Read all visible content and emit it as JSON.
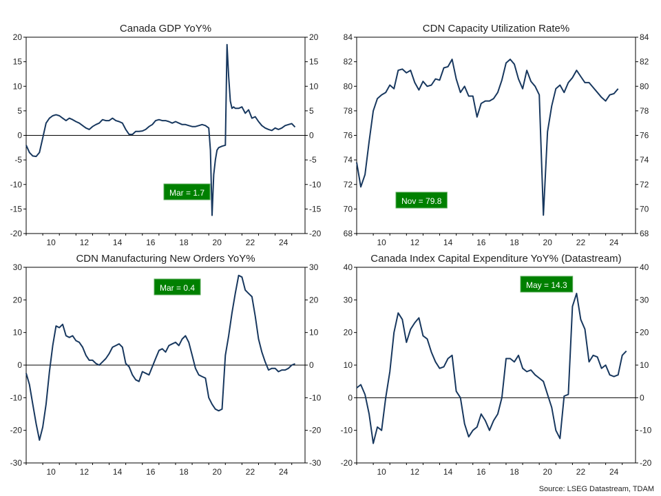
{
  "source": "Source: LSEG Datastream, TDAM",
  "colors": {
    "line": "#17375e",
    "label_bg": "#008000",
    "label_border": "#5fae5f",
    "label_text": "#ffffff"
  },
  "chart_data": [
    {
      "type": "line",
      "title": "Canada GDP YoY%",
      "xlim": [
        2009,
        2025.8
      ],
      "ylim": [
        -20,
        20
      ],
      "x_ticks": [
        10,
        12,
        14,
        16,
        18,
        20,
        22,
        24
      ],
      "y_ticks": [
        -20,
        -15,
        -10,
        -5,
        0,
        5,
        10,
        15,
        20
      ],
      "zero_line": true,
      "annotation": "Mar  = 1.7",
      "x": [
        2009.0,
        2009.2,
        2009.4,
        2009.6,
        2009.8,
        2010.0,
        2010.2,
        2010.4,
        2010.6,
        2010.8,
        2011.0,
        2011.2,
        2011.4,
        2011.6,
        2011.8,
        2012.0,
        2012.2,
        2012.4,
        2012.6,
        2012.8,
        2013.0,
        2013.2,
        2013.4,
        2013.6,
        2013.8,
        2014.0,
        2014.2,
        2014.4,
        2014.6,
        2014.8,
        2015.0,
        2015.2,
        2015.4,
        2015.6,
        2015.8,
        2016.0,
        2016.2,
        2016.4,
        2016.6,
        2016.8,
        2017.0,
        2017.2,
        2017.4,
        2017.6,
        2017.8,
        2018.0,
        2018.2,
        2018.4,
        2018.6,
        2018.8,
        2019.0,
        2019.2,
        2019.4,
        2019.6,
        2019.8,
        2020.0,
        2020.1,
        2020.2,
        2020.3,
        2020.4,
        2020.5,
        2020.6,
        2020.8,
        2021.0,
        2021.1,
        2021.2,
        2021.3,
        2021.4,
        2021.5,
        2021.6,
        2021.8,
        2022.0,
        2022.2,
        2022.4,
        2022.6,
        2022.8,
        2023.0,
        2023.2,
        2023.4,
        2023.6,
        2023.8,
        2024.0,
        2024.2,
        2024.4,
        2024.6,
        2024.8,
        2025.0,
        2025.2
      ],
      "values": [
        -2.0,
        -3.5,
        -4.2,
        -4.3,
        -3.5,
        -0.5,
        2.5,
        3.5,
        4.0,
        4.2,
        4.0,
        3.5,
        3.0,
        3.5,
        3.2,
        2.8,
        2.5,
        2.0,
        1.5,
        1.2,
        1.8,
        2.2,
        2.5,
        3.2,
        3.0,
        3.0,
        3.5,
        3.0,
        2.8,
        2.5,
        1.2,
        0.2,
        0.2,
        0.8,
        0.8,
        0.9,
        1.2,
        1.8,
        2.2,
        3.0,
        3.2,
        3.0,
        3.0,
        2.8,
        2.5,
        2.8,
        2.5,
        2.2,
        2.2,
        2.0,
        1.8,
        1.8,
        2.0,
        2.2,
        2.0,
        1.5,
        -3.0,
        -16.3,
        -8.0,
        -5.0,
        -3.0,
        -2.5,
        -2.2,
        -2.0,
        18.5,
        12.0,
        7.0,
        5.5,
        5.8,
        5.5,
        5.5,
        5.8,
        4.5,
        5.2,
        3.5,
        3.8,
        2.8,
        2.0,
        1.5,
        1.2,
        1.0,
        1.5,
        1.2,
        1.5,
        2.0,
        2.2,
        2.4,
        1.7
      ]
    },
    {
      "type": "line",
      "title": "CDN Capacity Utilization Rate%",
      "xlim": [
        2009,
        2025.8
      ],
      "ylim": [
        68,
        84
      ],
      "x_ticks": [
        10,
        12,
        14,
        16,
        18,
        20,
        22,
        24
      ],
      "y_ticks": [
        68,
        70,
        72,
        74,
        76,
        78,
        80,
        82,
        84
      ],
      "zero_line": false,
      "annotation": "Nov  = 79.8",
      "x": [
        2009.0,
        2009.25,
        2009.5,
        2009.75,
        2010.0,
        2010.25,
        2010.5,
        2010.75,
        2011.0,
        2011.25,
        2011.5,
        2011.75,
        2012.0,
        2012.25,
        2012.5,
        2012.75,
        2013.0,
        2013.25,
        2013.5,
        2013.75,
        2014.0,
        2014.25,
        2014.5,
        2014.75,
        2015.0,
        2015.25,
        2015.5,
        2015.75,
        2016.0,
        2016.25,
        2016.5,
        2016.75,
        2017.0,
        2017.25,
        2017.5,
        2017.75,
        2018.0,
        2018.25,
        2018.5,
        2018.75,
        2019.0,
        2019.25,
        2019.5,
        2019.75,
        2020.0,
        2020.25,
        2020.5,
        2020.75,
        2021.0,
        2021.25,
        2021.5,
        2021.75,
        2022.0,
        2022.25,
        2022.5,
        2022.75,
        2023.0,
        2023.25,
        2023.5,
        2023.75,
        2024.0,
        2024.25,
        2024.5,
        2024.75
      ],
      "values": [
        73.8,
        71.8,
        72.8,
        75.5,
        78.0,
        79.0,
        79.3,
        79.5,
        80.1,
        79.8,
        81.3,
        81.4,
        81.1,
        81.3,
        80.3,
        79.7,
        80.4,
        80.0,
        80.1,
        80.6,
        80.5,
        81.5,
        81.6,
        82.2,
        80.6,
        79.5,
        80.0,
        79.2,
        79.2,
        77.5,
        78.6,
        78.8,
        78.8,
        79.0,
        79.5,
        80.5,
        81.9,
        82.2,
        81.8,
        80.6,
        79.8,
        81.3,
        80.4,
        80.0,
        79.3,
        69.5,
        76.3,
        78.4,
        79.8,
        80.1,
        79.5,
        80.3,
        80.7,
        81.3,
        80.8,
        80.3,
        80.3,
        79.9,
        79.5,
        79.1,
        78.8,
        79.3,
        79.4,
        79.8
      ]
    },
    {
      "type": "line",
      "title": "CDN Manufacturing New Orders YoY%",
      "xlim": [
        2009,
        2025.8
      ],
      "ylim": [
        -30,
        30
      ],
      "x_ticks": [
        10,
        12,
        14,
        16,
        18,
        20,
        22,
        24
      ],
      "y_ticks": [
        -30,
        -20,
        -10,
        0,
        10,
        20,
        30
      ],
      "zero_line": true,
      "annotation": "Mar  = 0.4",
      "x": [
        2009.0,
        2009.2,
        2009.4,
        2009.6,
        2009.8,
        2010.0,
        2010.2,
        2010.4,
        2010.6,
        2010.8,
        2011.0,
        2011.2,
        2011.4,
        2011.6,
        2011.8,
        2012.0,
        2012.2,
        2012.4,
        2012.6,
        2012.8,
        2013.0,
        2013.2,
        2013.4,
        2013.6,
        2013.8,
        2014.0,
        2014.2,
        2014.4,
        2014.6,
        2014.8,
        2015.0,
        2015.2,
        2015.4,
        2015.6,
        2015.8,
        2016.0,
        2016.2,
        2016.4,
        2016.6,
        2016.8,
        2017.0,
        2017.2,
        2017.4,
        2017.6,
        2017.8,
        2018.0,
        2018.2,
        2018.4,
        2018.6,
        2018.8,
        2019.0,
        2019.2,
        2019.4,
        2019.6,
        2019.8,
        2020.0,
        2020.2,
        2020.4,
        2020.6,
        2020.8,
        2021.0,
        2021.2,
        2021.4,
        2021.6,
        2021.8,
        2022.0,
        2022.2,
        2022.4,
        2022.6,
        2022.8,
        2023.0,
        2023.2,
        2023.4,
        2023.6,
        2023.8,
        2024.0,
        2024.2,
        2024.4,
        2024.6,
        2024.8,
        2025.0,
        2025.2
      ],
      "values": [
        -2.5,
        -6.0,
        -12.0,
        -18.0,
        -23.0,
        -19.0,
        -12.0,
        -2.0,
        6.0,
        12.0,
        11.5,
        12.5,
        9.0,
        8.5,
        9.0,
        7.5,
        7.0,
        5.5,
        3.0,
        1.5,
        1.5,
        0.5,
        0.0,
        1.0,
        2.0,
        3.5,
        5.5,
        6.0,
        6.5,
        5.5,
        0.5,
        -0.5,
        -3.0,
        -4.5,
        -5.0,
        -2.0,
        -2.5,
        -3.0,
        -0.5,
        2.0,
        4.5,
        5.0,
        4.0,
        6.0,
        6.5,
        7.0,
        6.0,
        8.0,
        9.0,
        7.0,
        3.0,
        -1.0,
        -3.0,
        -3.5,
        -4.0,
        -10.0,
        -12.0,
        -13.5,
        -14.0,
        -13.5,
        3.0,
        9.0,
        16.0,
        22.0,
        27.5,
        27.0,
        23.0,
        22.0,
        21.0,
        15.0,
        8.0,
        4.0,
        1.0,
        -1.5,
        -1.0,
        -1.0,
        -2.0,
        -1.5,
        -1.5,
        -1.0,
        0.0,
        0.4
      ]
    },
    {
      "type": "line",
      "title": "Canada Index Capital Expenditure YoY% (Datastream)",
      "xlim": [
        2009,
        2025.8
      ],
      "ylim": [
        -20,
        40
      ],
      "x_ticks": [
        10,
        12,
        14,
        16,
        18,
        20,
        22,
        24
      ],
      "y_ticks": [
        -20,
        -10,
        0,
        10,
        20,
        30,
        40
      ],
      "zero_line": true,
      "annotation": "May  = 14.3",
      "x": [
        2009.0,
        2009.25,
        2009.5,
        2009.75,
        2010.0,
        2010.25,
        2010.5,
        2010.75,
        2011.0,
        2011.25,
        2011.5,
        2011.75,
        2012.0,
        2012.25,
        2012.5,
        2012.75,
        2013.0,
        2013.25,
        2013.5,
        2013.75,
        2014.0,
        2014.25,
        2014.5,
        2014.75,
        2015.0,
        2015.25,
        2015.5,
        2015.75,
        2016.0,
        2016.25,
        2016.5,
        2016.75,
        2017.0,
        2017.25,
        2017.5,
        2017.75,
        2018.0,
        2018.25,
        2018.5,
        2018.75,
        2019.0,
        2019.25,
        2019.5,
        2019.75,
        2020.0,
        2020.25,
        2020.5,
        2020.75,
        2021.0,
        2021.25,
        2021.5,
        2021.75,
        2022.0,
        2022.25,
        2022.5,
        2022.75,
        2023.0,
        2023.25,
        2023.5,
        2023.75,
        2024.0,
        2024.25,
        2024.5,
        2024.75,
        2025.0,
        2025.25
      ],
      "values": [
        3.0,
        4.0,
        1.0,
        -5.0,
        -14.0,
        -9.0,
        -10.0,
        0.0,
        8.0,
        20.0,
        26.0,
        24.0,
        17.0,
        21.0,
        23.0,
        24.5,
        19.0,
        18.0,
        14.0,
        11.0,
        9.0,
        9.5,
        12.0,
        13.0,
        2.0,
        0.0,
        -8.0,
        -12.0,
        -10.0,
        -9.0,
        -5.0,
        -7.0,
        -10.0,
        -7.0,
        -5.0,
        0.0,
        12.0,
        12.0,
        11.0,
        13.0,
        9.0,
        8.0,
        8.5,
        7.0,
        6.0,
        5.0,
        1.0,
        -3.0,
        -10.0,
        -12.5,
        0.5,
        1.0,
        28.0,
        32.0,
        24.0,
        21.0,
        11.0,
        13.0,
        12.5,
        9.0,
        10.0,
        7.0,
        6.5,
        7.0,
        13.0,
        14.3
      ]
    }
  ]
}
